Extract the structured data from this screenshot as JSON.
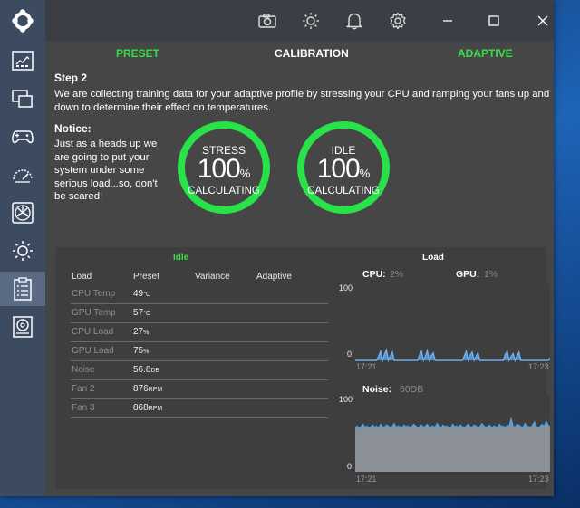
{
  "nav": {
    "tabs": [
      {
        "label": "PRESET"
      },
      {
        "label": "CALIBRATION"
      },
      {
        "label": "ADAPTIVE"
      }
    ]
  },
  "step": {
    "title": "Step 2",
    "description": "We are collecting training data for your adaptive profile by stressing your CPU and ramping your fans up and down to determine their effect on temperatures."
  },
  "notice": {
    "title": "Notice:",
    "text": "Just as a heads up we are going to put your system under some serious load...so, don't be scared!"
  },
  "gauges": [
    {
      "label": "STRESS",
      "value": "100",
      "unit": "%",
      "status": "CALCULATING"
    },
    {
      "label": "IDLE",
      "value": "100",
      "unit": "%",
      "status": "CALCULATING"
    }
  ],
  "idle_section": {
    "title": "Idle",
    "headers": [
      "Load",
      "Preset",
      "Variance",
      "Adaptive"
    ],
    "rows": [
      {
        "name": "CPU Temp",
        "value": "49",
        "unit": "°C"
      },
      {
        "name": "GPU Temp",
        "value": "57",
        "unit": "°C"
      },
      {
        "name": "CPU Load",
        "value": "27",
        "unit": "%"
      },
      {
        "name": "GPU Load",
        "value": "75",
        "unit": "%"
      },
      {
        "name": "Noise",
        "value": "56.8",
        "unit": "DB"
      },
      {
        "name": "Fan 2",
        "value": "876",
        "unit": "RPM"
      },
      {
        "name": "Fan 3",
        "value": "868",
        "unit": "RPM"
      }
    ]
  },
  "load_section": {
    "title": "Load",
    "cpu_label": "CPU:",
    "cpu_value": "2%",
    "gpu_label": "GPU:",
    "gpu_value": "1%",
    "noise_label": "Noise:",
    "noise_value": "60DB"
  },
  "chart_data": [
    {
      "type": "area",
      "xlabel": "",
      "ylabel": "",
      "ylim": [
        0,
        100
      ],
      "y_ticks": [
        "100",
        "0"
      ],
      "x_ticks": [
        "17:21",
        "17:23"
      ],
      "series": [
        {
          "values": [
            0,
            0,
            0,
            0,
            0,
            0,
            0,
            0,
            0,
            0,
            0,
            0,
            5,
            12,
            0,
            8,
            14,
            0,
            6,
            11,
            0,
            0,
            0,
            0,
            0,
            0,
            0,
            0,
            0,
            0,
            0,
            0,
            0,
            7,
            12,
            0,
            5,
            13,
            0,
            6,
            10,
            0,
            0,
            0,
            0,
            0,
            0,
            0,
            0,
            0,
            0,
            0,
            0,
            0,
            0,
            0,
            6,
            12,
            0,
            7,
            11,
            0,
            5,
            10,
            0,
            0,
            0,
            0,
            0,
            0,
            0,
            0,
            0,
            0,
            0,
            0,
            0,
            8,
            12,
            0,
            5,
            9,
            0,
            6,
            11,
            0,
            0,
            0,
            0,
            0,
            0,
            0,
            0,
            0,
            0,
            0,
            0,
            0,
            0,
            0,
            3
          ]
        }
      ]
    },
    {
      "type": "area",
      "xlabel": "",
      "ylabel": "",
      "ylim": [
        0,
        100
      ],
      "y_ticks": [
        "100",
        "0"
      ],
      "x_ticks": [
        "17:21",
        "17:23"
      ],
      "series": [
        {
          "values": [
            58,
            61,
            57,
            60,
            63,
            59,
            61,
            58,
            60,
            62,
            59,
            61,
            58,
            63,
            60,
            59,
            62,
            61,
            58,
            60,
            64,
            59,
            61,
            60,
            58,
            62,
            60,
            61,
            59,
            60,
            63,
            61,
            58,
            60,
            62,
            59,
            61,
            63,
            58,
            60,
            61,
            59,
            64,
            60,
            58,
            62,
            60,
            61,
            59,
            58,
            63,
            60,
            61,
            59,
            62,
            60,
            58,
            61,
            63,
            60,
            59,
            62,
            61,
            58,
            60,
            64,
            61,
            59,
            60,
            62,
            58,
            61,
            60,
            59,
            63,
            60,
            61,
            58,
            62,
            60,
            70,
            61,
            59,
            63,
            62,
            60,
            58,
            64,
            61,
            60,
            59,
            62,
            66,
            60,
            58,
            61,
            63,
            60,
            67,
            62,
            60
          ]
        }
      ]
    }
  ]
}
